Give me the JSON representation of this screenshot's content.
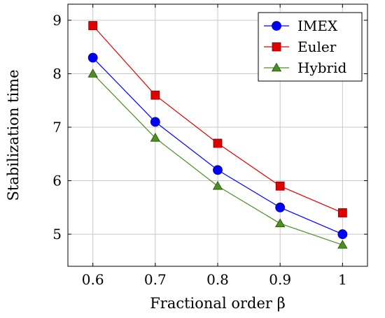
{
  "chart_data": {
    "type": "line",
    "title": "",
    "xlabel": "Fractional order β",
    "ylabel": "Stabilization time",
    "x": [
      0.6,
      0.7,
      0.8,
      0.9,
      1
    ],
    "x_tick_labels": [
      "0.6",
      "0.7",
      "0.8",
      "0.9",
      "1"
    ],
    "y_ticks": [
      5,
      6,
      7,
      8,
      9
    ],
    "y_tick_labels": [
      "5",
      "6",
      "7",
      "8",
      "9"
    ],
    "xlim": [
      0.56,
      1.04
    ],
    "ylim": [
      4.4,
      9.3
    ],
    "grid": true,
    "legend_position": "top-right",
    "series": [
      {
        "name": "IMEX",
        "color": "#0000ff",
        "marker": "circle",
        "values": [
          8.3,
          7.1,
          6.2,
          5.5,
          5.0
        ]
      },
      {
        "name": "Euler",
        "color": "#e00000",
        "marker": "square",
        "values": [
          8.9,
          7.6,
          6.7,
          5.9,
          5.4
        ]
      },
      {
        "name": "Hybrid",
        "color": "#4b8f1e",
        "marker": "triangle",
        "values": [
          8.0,
          6.8,
          5.9,
          5.2,
          4.8
        ]
      }
    ]
  }
}
